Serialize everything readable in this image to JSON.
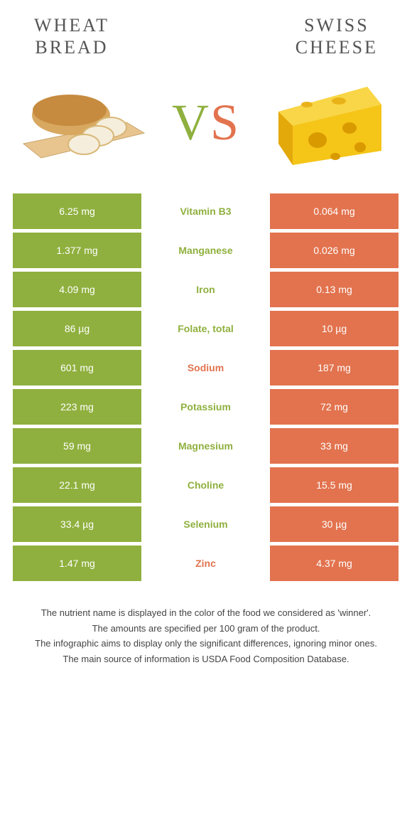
{
  "colors": {
    "left": "#8fb03e",
    "right": "#e2734e",
    "white": "#ffffff"
  },
  "font": {
    "title_size": 26,
    "vs_size": 72,
    "cell_size": 14,
    "footer_size": 13
  },
  "left_food": {
    "title": "WHEAT\nBREAD"
  },
  "right_food": {
    "title": "SWISS\nCHEESE"
  },
  "vs": {
    "v": "V",
    "s": "S"
  },
  "rows": [
    {
      "left": "6.25 mg",
      "label": "Vitamin B3",
      "right": "0.064 mg",
      "winner": "left"
    },
    {
      "left": "1.377 mg",
      "label": "Manganese",
      "right": "0.026 mg",
      "winner": "left"
    },
    {
      "left": "4.09 mg",
      "label": "Iron",
      "right": "0.13 mg",
      "winner": "left"
    },
    {
      "left": "86 µg",
      "label": "Folate, total",
      "right": "10 µg",
      "winner": "left"
    },
    {
      "left": "601 mg",
      "label": "Sodium",
      "right": "187 mg",
      "winner": "right"
    },
    {
      "left": "223 mg",
      "label": "Potassium",
      "right": "72 mg",
      "winner": "left"
    },
    {
      "left": "59 mg",
      "label": "Magnesium",
      "right": "33 mg",
      "winner": "left"
    },
    {
      "left": "22.1 mg",
      "label": "Choline",
      "right": "15.5 mg",
      "winner": "left"
    },
    {
      "left": "33.4 µg",
      "label": "Selenium",
      "right": "30 µg",
      "winner": "left"
    },
    {
      "left": "1.47 mg",
      "label": "Zinc",
      "right": "4.37 mg",
      "winner": "right"
    }
  ],
  "footer": {
    "l1": "The nutrient name is displayed in the color of the food we considered as 'winner'.",
    "l2": "The amounts are specified per 100 gram of the product.",
    "l3": "The infographic aims to display only the significant differences, ignoring minor ones.",
    "l4": "The main source of information is USDA Food Composition Database."
  }
}
